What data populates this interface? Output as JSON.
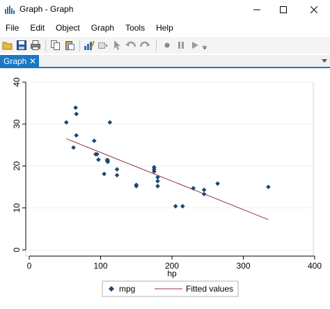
{
  "window": {
    "title": "Graph - Graph"
  },
  "menu": [
    "File",
    "Edit",
    "Object",
    "Graph",
    "Tools",
    "Help"
  ],
  "toolbar": {
    "icons": [
      "open-icon",
      "save-icon",
      "print-icon",
      "copy-icon",
      "paste-icon",
      "graph-editor-icon",
      "rename-icon",
      "pointer-icon",
      "undo-icon",
      "redo-icon",
      "record-icon",
      "pause-icon",
      "play-icon"
    ]
  },
  "tabs": [
    {
      "label": "Graph",
      "close": "✕"
    }
  ],
  "chart_data": {
    "type": "scatter",
    "xlabel": "hp",
    "ylabel": "",
    "xlim": [
      0,
      400
    ],
    "ylim": [
      0,
      40
    ],
    "x_ticks": [
      "0",
      "100",
      "200",
      "300",
      "400"
    ],
    "y_ticks": [
      "0",
      "10",
      "20",
      "30",
      "40"
    ],
    "grid": true,
    "legend_position": "bottom",
    "series": [
      {
        "name": "mpg",
        "type": "scatter",
        "color": "#1a476f",
        "points": [
          [
            52,
            30.4
          ],
          [
            62,
            24.4
          ],
          [
            65,
            33.9
          ],
          [
            66,
            32.4
          ],
          [
            66,
            27.3
          ],
          [
            91,
            26.0
          ],
          [
            93,
            22.8
          ],
          [
            95,
            22.8
          ],
          [
            97,
            21.5
          ],
          [
            105,
            18.1
          ],
          [
            109,
            21.4
          ],
          [
            110,
            21.0
          ],
          [
            110,
            21.0
          ],
          [
            110,
            21.4
          ],
          [
            113,
            30.4
          ],
          [
            123,
            19.2
          ],
          [
            123,
            17.8
          ],
          [
            150,
            15.2
          ],
          [
            150,
            15.5
          ],
          [
            175,
            18.7
          ],
          [
            175,
            19.2
          ],
          [
            175,
            19.7
          ],
          [
            180,
            16.4
          ],
          [
            180,
            17.3
          ],
          [
            180,
            15.2
          ],
          [
            205,
            10.4
          ],
          [
            215,
            10.4
          ],
          [
            230,
            14.7
          ],
          [
            245,
            14.3
          ],
          [
            245,
            13.3
          ],
          [
            264,
            15.8
          ],
          [
            335,
            15.0
          ]
        ]
      },
      {
        "name": "Fitted values",
        "type": "line",
        "color": "#90353b",
        "points": [
          [
            52,
            26.5
          ],
          [
            335,
            7.2
          ]
        ]
      }
    ]
  }
}
